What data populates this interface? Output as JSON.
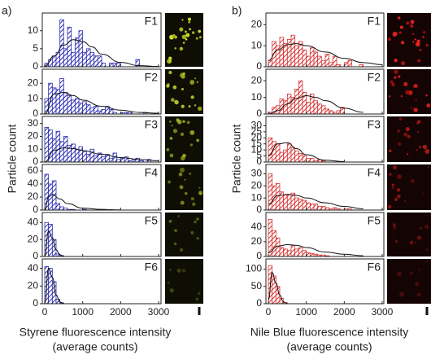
{
  "chart_data": [
    {
      "type": "histogram",
      "label": "a)",
      "ylabel": "Particle count",
      "xlabel": [
        "Styrene fluorescence intensity",
        "(average counts)"
      ],
      "color": "#2b2bb0",
      "xlim": [
        0,
        3000
      ],
      "xticks": [
        0,
        1000,
        2000,
        3000
      ],
      "panels": [
        {
          "name": "F1",
          "ylim": [
            0,
            14
          ],
          "yticks": [
            0,
            5,
            10
          ],
          "bins": [
            0,
            100,
            200,
            300,
            400,
            500,
            600,
            700,
            800,
            900,
            1000,
            1100,
            1200,
            1300,
            1400,
            1500,
            1600,
            1700,
            1800,
            1900,
            2000,
            2100,
            2200,
            2300,
            2400,
            2500
          ],
          "values": [
            1,
            2,
            3,
            4,
            13,
            5,
            11,
            4,
            8,
            10,
            4,
            5,
            4,
            3,
            3,
            1,
            0,
            1,
            1,
            1,
            0,
            0,
            0,
            0,
            2
          ],
          "fit": {
            "x": [
              0,
              250,
              500,
              750,
              1000,
              1250,
              1500,
              2000,
              2500,
              3000
            ],
            "values": [
              0,
              3,
              6,
              7.5,
              7,
              5.5,
              3.5,
              1.2,
              0.3,
              0.1
            ]
          }
        },
        {
          "name": "F2",
          "ylim": [
            0,
            27
          ],
          "yticks": [
            0,
            10,
            20
          ],
          "bins": [
            0,
            100,
            200,
            300,
            400,
            500,
            600,
            700,
            800,
            900,
            1000,
            1100,
            1200,
            1300,
            1400,
            1500,
            1600,
            1700,
            1800,
            1900,
            2000,
            2100,
            2200,
            2300,
            2400,
            2500,
            2600,
            2700
          ],
          "values": [
            10,
            20,
            17,
            16,
            23,
            14,
            12,
            9,
            10,
            7,
            8,
            6,
            4,
            5,
            2,
            3,
            5,
            3,
            1,
            0,
            1,
            1,
            1,
            0,
            0,
            0,
            1
          ],
          "fit": {
            "x": [
              0,
              250,
              500,
              750,
              1000,
              1500,
              2000,
              2500,
              3000
            ],
            "values": [
              0,
              13,
              14,
              12,
              9,
              5,
              2.5,
              1,
              0.5
            ]
          }
        },
        {
          "name": "F3",
          "ylim": [
            0,
            33
          ],
          "yticks": [
            0,
            10,
            20,
            30
          ],
          "bins": [
            0,
            100,
            200,
            300,
            400,
            500,
            600,
            700,
            800,
            900,
            1000,
            1100,
            1200,
            1300,
            1400,
            1500,
            1600,
            1700,
            1800,
            1900,
            2000,
            2100,
            2200,
            2300,
            2400,
            2500,
            2600,
            2700,
            2800
          ],
          "values": [
            27,
            25,
            18,
            24,
            16,
            20,
            13,
            14,
            10,
            12,
            8,
            6,
            10,
            5,
            7,
            4,
            6,
            3,
            7,
            2,
            3,
            4,
            1,
            2,
            3,
            1,
            0,
            2
          ],
          "fit": {
            "x": [
              0,
              250,
              500,
              750,
              1000,
              1500,
              2000,
              2500,
              3000
            ],
            "values": [
              0,
              9,
              11,
              10.5,
              9,
              6,
              3.5,
              2,
              1
            ]
          }
        },
        {
          "name": "F4",
          "ylim": [
            0,
            65
          ],
          "yticks": [
            0,
            20,
            40,
            60
          ],
          "bins": [
            0,
            100,
            200,
            300,
            400,
            500,
            600,
            700,
            800,
            900,
            1000,
            1100,
            1200,
            1300,
            1400,
            1500,
            1600
          ],
          "values": [
            55,
            40,
            45,
            10,
            5,
            3,
            1,
            1,
            0,
            0,
            1,
            0,
            0,
            0,
            1,
            1
          ],
          "fit": {
            "x": [
              0,
              100,
              200,
              400,
              600,
              1000,
              1500,
              2000
            ],
            "values": [
              0,
              20,
              24,
              17,
              10,
              3,
              1,
              0.3
            ]
          }
        },
        {
          "name": "F5",
          "ylim": [
            0,
            48
          ],
          "yticks": [
            0,
            20,
            40
          ],
          "bins": [
            0,
            100,
            200,
            300,
            400,
            500
          ],
          "values": [
            40,
            38,
            20,
            3,
            1
          ],
          "fit": {
            "x": [
              0,
              100,
              200,
              300,
              400,
              500
            ],
            "values": [
              0,
              30,
              22,
              8,
              2,
              0.5
            ]
          }
        },
        {
          "name": "F6",
          "ylim": [
            0,
            47
          ],
          "yticks": [
            0,
            20,
            40
          ],
          "bins": [
            0,
            100,
            200,
            300,
            400,
            500
          ],
          "values": [
            42,
            40,
            25,
            5,
            1
          ],
          "fit": {
            "x": [
              0,
              100,
              200,
              300,
              400,
              500
            ],
            "values": [
              0,
              40,
              30,
              10,
              2,
              0.5
            ]
          }
        }
      ]
    },
    {
      "type": "histogram",
      "label": "b)",
      "ylabel": "Particle count",
      "xlabel": [
        "Nile Blue fluorescence intensity",
        "(average counts)"
      ],
      "color": "#d83232",
      "xlim": [
        0,
        3000
      ],
      "xticks": [
        0,
        1000,
        2000,
        3000
      ],
      "panels": [
        {
          "name": "F1",
          "ylim": [
            0,
            24
          ],
          "yticks": [
            0,
            10,
            20
          ],
          "bins": [
            0,
            100,
            200,
            300,
            400,
            500,
            600,
            700,
            800,
            900,
            1000,
            1100,
            1200,
            1300,
            1400,
            1500,
            1600,
            1700,
            1800,
            1900,
            2000,
            2100,
            2200,
            2300,
            2400,
            2500,
            2600
          ],
          "values": [
            3,
            12,
            10,
            14,
            11,
            13,
            15,
            10,
            12,
            8,
            5,
            9,
            7,
            5,
            3,
            6,
            2,
            5,
            1,
            0,
            2,
            3,
            0,
            0,
            1,
            0
          ],
          "fit": {
            "x": [
              0,
              250,
              500,
              750,
              1000,
              1500,
              2000,
              2500,
              3000
            ],
            "values": [
              3,
              8,
              10.5,
              11,
              10,
              7,
              4,
              2,
              1
            ]
          }
        },
        {
          "name": "F2",
          "ylim": [
            0,
            25
          ],
          "yticks": [
            0,
            10,
            20
          ],
          "bins": [
            0,
            100,
            200,
            300,
            400,
            500,
            600,
            700,
            800,
            900,
            1000,
            1100,
            1200,
            1300,
            1400,
            1500,
            1600,
            1700,
            1800,
            1900,
            2000
          ],
          "values": [
            1,
            4,
            5,
            9,
            8,
            12,
            10,
            15,
            20,
            13,
            7,
            12,
            8,
            6,
            5,
            3,
            2,
            1,
            2,
            4
          ],
          "fit": {
            "x": [
              0,
              250,
              500,
              750,
              1000,
              1250,
              1500,
              2000,
              2500
            ],
            "values": [
              0,
              2,
              6,
              9.5,
              11,
              10,
              8,
              3.5,
              1
            ]
          }
        },
        {
          "name": "F3",
          "ylim": [
            0,
            35
          ],
          "yticks": [
            0,
            5,
            10,
            15,
            20,
            25,
            30
          ],
          "bins": [
            0,
            100,
            200,
            300,
            400,
            500,
            600,
            700,
            800,
            900,
            1000,
            1100,
            1200,
            1300,
            1400,
            1500
          ],
          "values": [
            20,
            17,
            15,
            8,
            10,
            15,
            12,
            9,
            7,
            5,
            3,
            3,
            1,
            2,
            1
          ],
          "fit": {
            "x": [
              0,
              250,
              500,
              750,
              1000,
              1500,
              2000
            ],
            "values": [
              5,
              15,
              16,
              11,
              6,
              1.5,
              0.3
            ]
          }
        },
        {
          "name": "F4",
          "ylim": [
            0,
            35
          ],
          "yticks": [
            0,
            10,
            20,
            30
          ],
          "bins": [
            0,
            100,
            200,
            300,
            400,
            500,
            600,
            700,
            800,
            900,
            1000,
            1100,
            1200,
            1300,
            1400,
            1500,
            1600,
            1700,
            1800,
            1900,
            2000,
            2100,
            2200
          ],
          "values": [
            30,
            20,
            22,
            15,
            12,
            13,
            14,
            10,
            9,
            8,
            6,
            5,
            5,
            3,
            3,
            2,
            1,
            2,
            1,
            0,
            1,
            1
          ],
          "fit": {
            "x": [
              0,
              250,
              500,
              750,
              1000,
              1500,
              2000,
              2500
            ],
            "values": [
              5,
              12,
              13,
              12,
              10,
              6,
              3,
              1
            ]
          }
        },
        {
          "name": "F5",
          "ylim": [
            0,
            55
          ],
          "yticks": [
            0,
            20,
            40
          ],
          "bins": [
            0,
            100,
            200,
            300,
            400,
            500,
            600,
            700,
            800,
            900,
            1000,
            1100,
            1200,
            1300,
            1400,
            1500,
            1600
          ],
          "values": [
            50,
            35,
            25,
            12,
            10,
            8,
            15,
            10,
            12,
            8,
            5,
            4,
            3,
            2,
            2,
            1
          ],
          "fit": {
            "x": [
              0,
              250,
              500,
              750,
              1000,
              1500,
              2000,
              2500
            ],
            "values": [
              5,
              14,
              16,
              15,
              12,
              6,
              3,
              1
            ]
          }
        },
        {
          "name": "F6",
          "ylim": [
            0,
            120
          ],
          "yticks": [
            0,
            50,
            100
          ],
          "bins": [
            0,
            100,
            200,
            300,
            400,
            500
          ],
          "values": [
            110,
            80,
            50,
            15,
            3
          ],
          "fit": {
            "x": [
              0,
              100,
              200,
              300,
              400,
              500
            ],
            "values": [
              10,
              90,
              60,
              25,
              5,
              1
            ]
          }
        }
      ]
    }
  ]
}
